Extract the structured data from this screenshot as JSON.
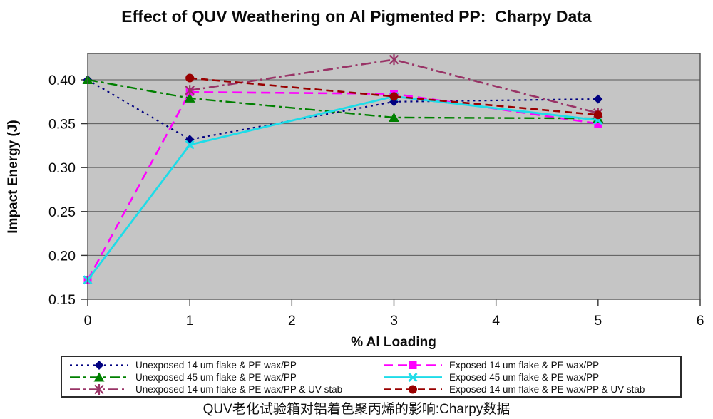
{
  "title": "Effect of QUV Weathering on Al Pigmented PP:  Charpy Data",
  "caption": "QUV老化试验箱对铝着色聚丙烯的影响:Charpy数据",
  "chart_data": {
    "type": "line",
    "title": "Effect of QUV Weathering on Al Pigmented PP:  Charpy Data",
    "xlabel": "% Al Loading",
    "ylabel": "Impact Energy (J)",
    "xlim": [
      0,
      6
    ],
    "ylim": [
      0.15,
      0.43
    ],
    "x_ticks": [
      0,
      1,
      2,
      3,
      4,
      5,
      6
    ],
    "y_ticks": [
      0.15,
      0.2,
      0.25,
      0.3,
      0.35,
      0.4
    ],
    "grid": true,
    "plot_bg": "#c5c5c5",
    "grid_color": "#595959",
    "border_color": "#4d4d4d",
    "legend_position": "bottom",
    "series": [
      {
        "name": "Unexposed 14 um flake & PE wax/PP",
        "color": "#000080",
        "marker": "diamond",
        "dash": "3 5",
        "width": 2.2,
        "x": [
          0,
          1,
          3,
          5
        ],
        "y": [
          0.4,
          0.332,
          0.375,
          0.378
        ]
      },
      {
        "name": "Exposed 14 um flake & PE wax/PP",
        "color": "#ff00ff",
        "marker": "square",
        "dash": "13 7",
        "width": 2.6,
        "x": [
          0,
          1,
          3,
          5
        ],
        "y": [
          0.172,
          0.386,
          0.384,
          0.35
        ]
      },
      {
        "name": "Unexposed 45 um flake & PE wax/PP",
        "color": "#008000",
        "marker": "triangle",
        "dash": "14 5 4 5",
        "width": 2.4,
        "x": [
          0,
          1,
          3,
          5
        ],
        "y": [
          0.4,
          0.379,
          0.357,
          0.356
        ]
      },
      {
        "name": "Exposed 45 um flake & PE wax/PP",
        "color": "#1edce8",
        "marker": "x",
        "dash": "",
        "width": 2.8,
        "x": [
          0,
          1,
          3,
          5
        ],
        "y": [
          0.172,
          0.326,
          0.381,
          0.354
        ]
      },
      {
        "name": "Unexposed 14 um flake & PE wax/PP & UV stab",
        "color": "#993366",
        "marker": "asterisk",
        "dash": "14 5 3 5",
        "width": 2.6,
        "x": [
          1,
          3,
          5
        ],
        "y": [
          0.388,
          0.423,
          0.362
        ]
      },
      {
        "name": "Exposed 14 um flake & PE wax/PP & UV stab",
        "color": "#990000",
        "marker": "circle",
        "dash": "10 6",
        "width": 2.6,
        "x": [
          1,
          3,
          5
        ],
        "y": [
          0.402,
          0.381,
          0.36
        ]
      }
    ]
  },
  "legend": {
    "columns": [
      [
        0,
        2,
        4
      ],
      [
        1,
        3,
        5
      ]
    ]
  }
}
